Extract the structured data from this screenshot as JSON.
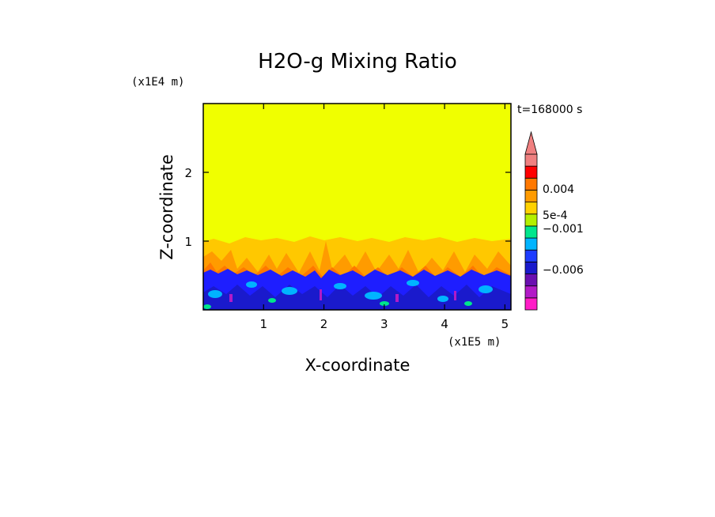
{
  "chart_data": {
    "type": "heatmap",
    "title": "H2O-g Mixing Ratio",
    "xlabel": "X-coordinate",
    "ylabel": "Z-coordinate",
    "x_units": "(x1E5 m)",
    "y_units": "(x1E4 m)",
    "time_label": "t=168000 s",
    "xlim": [
      0,
      5.1
    ],
    "ylim": [
      0,
      3.0
    ],
    "x_ticks": [
      1,
      2,
      3,
      4,
      5
    ],
    "x_tick_labels": [
      "1",
      "2",
      "3",
      "4",
      "5"
    ],
    "y_ticks": [
      1,
      2
    ],
    "y_tick_labels": [
      "1",
      "2"
    ],
    "background_level_color": "#f0ff00",
    "layers": [
      {
        "name": "moist-band-orange",
        "z_top": 1.0,
        "color": "#ffc800"
      },
      {
        "name": "lower-blue-layer",
        "z_top": 0.6,
        "color": "#1e1eff"
      }
    ],
    "colorbar": {
      "colors": [
        "#ff1cc7",
        "#b21ac7",
        "#6a0fb0",
        "#1a1acc",
        "#1e3cff",
        "#00b4ff",
        "#00e68c",
        "#b4f000",
        "#ffd200",
        "#ff9b00",
        "#ff7800",
        "#ff0000",
        "#f08080"
      ],
      "tick_labels": [
        {
          "label": "0.004",
          "level": 0.004
        },
        {
          "label": "5e-4",
          "level": 0.0005
        },
        {
          "label": "−0.001",
          "level": -0.001
        },
        {
          "label": "−0.006",
          "level": -0.006
        }
      ],
      "extend": "max"
    }
  }
}
